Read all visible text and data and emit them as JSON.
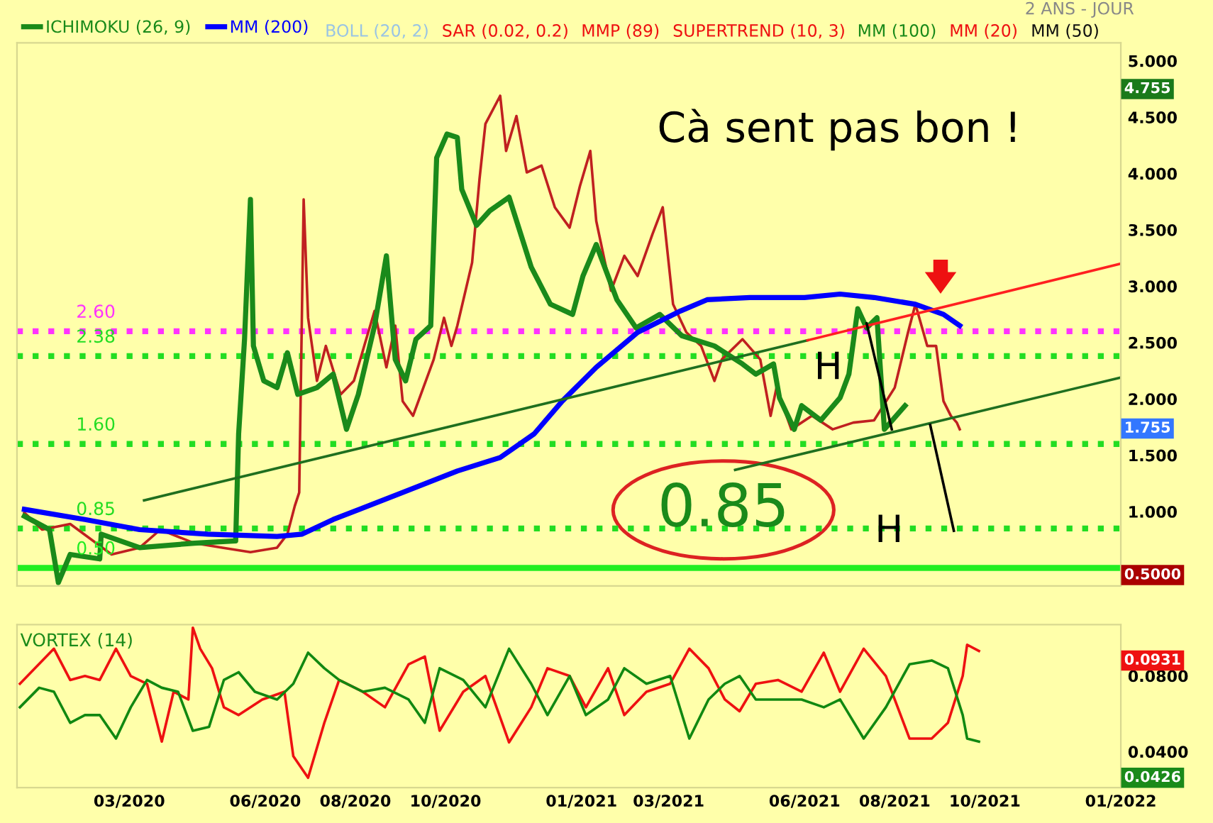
{
  "chart_data": [
    {
      "type": "line",
      "xlim": [
        "2019-12-16",
        "2022-01-01"
      ],
      "ylim": [
        0.34,
        5.16
      ],
      "yticks": [
        {
          "value": 1,
          "label": "1.000"
        },
        {
          "value": 1.5,
          "label": "1.500"
        },
        {
          "value": 2,
          "label": "2.000"
        },
        {
          "value": 2.5,
          "label": "2.500"
        },
        {
          "value": 3,
          "label": "3.000"
        },
        {
          "value": 3.5,
          "label": "3.500"
        },
        {
          "value": 4,
          "label": "4.000"
        },
        {
          "value": 4.5,
          "label": "4.500"
        },
        {
          "value": 5,
          "label": "5.000"
        }
      ],
      "tick_labels": "y",
      "legend": "top left",
      "series": [
        {
          "color": "#c02020",
          "x": [
            "2019-12-21",
            "2020-01-02",
            "2020-01-21",
            "2020-02-18",
            "2020-03-08",
            "2020-03-22",
            "2020-04-14",
            "2020-05-03",
            "2020-05-22",
            "2020-06-09",
            "2020-06-16",
            "2020-06-21",
            "2020-06-24",
            "2020-06-27",
            "2020-06-30",
            "2020-07-06",
            "2020-07-12",
            "2020-07-22",
            "2020-07-31",
            "2020-08-07",
            "2020-08-14",
            "2020-08-22",
            "2020-08-28",
            "2020-09-02",
            "2020-09-09",
            "2020-09-16",
            "2020-09-23",
            "2020-09-30",
            "2020-10-05",
            "2020-10-09",
            "2020-10-19",
            "2020-10-24",
            "2020-10-28",
            "2020-11-07",
            "2020-11-11",
            "2020-11-18",
            "2020-11-25",
            "2020-12-05",
            "2020-12-14",
            "2020-12-24",
            "2020-12-31",
            "2021-01-07",
            "2021-01-11",
            "2021-01-21",
            "2021-01-30",
            "2021-02-08",
            "2021-02-18",
            "2021-02-25",
            "2021-03-04",
            "2021-03-13",
            "2021-03-23",
            "2021-04-01",
            "2021-04-06",
            "2021-04-20",
            "2021-05-02",
            "2021-05-09",
            "2021-05-13",
            "2021-05-23",
            "2021-06-06",
            "2021-06-20",
            "2021-07-04",
            "2021-07-18",
            "2021-08-01",
            "2021-08-10",
            "2021-08-15",
            "2021-08-23",
            "2021-08-29",
            "2021-09-03",
            "2021-09-08",
            "2021-09-12",
            "2021-09-14"
          ],
          "values": [
            0.99,
            0.84,
            0.89,
            0.62,
            0.68,
            0.84,
            0.72,
            0.68,
            0.64,
            0.68,
            0.8,
            1.05,
            1.17,
            3.77,
            2.72,
            2.16,
            2.47,
            2.04,
            2.16,
            2.47,
            2.78,
            2.28,
            2.65,
            1.98,
            1.85,
            2.1,
            2.35,
            2.72,
            2.47,
            2.65,
            3.21,
            3.95,
            4.44,
            4.69,
            4.2,
            4.51,
            4.01,
            4.07,
            3.7,
            3.52,
            3.89,
            4.2,
            3.58,
            2.96,
            3.27,
            3.09,
            3.46,
            3.7,
            2.84,
            2.59,
            2.47,
            2.16,
            2.35,
            2.53,
            2.35,
            1.85,
            2.1,
            1.73,
            1.85,
            1.73,
            1.79,
            1.81,
            2.1,
            2.59,
            2.84,
            2.47,
            2.47,
            1.98,
            1.85,
            1.79,
            1.73
          ]
        },
        {
          "name": "ICHIMOKU (26, 9)",
          "color": "#1a8a1a",
          "x": [
            "2019-12-21",
            "2020-01-07",
            "2020-01-13",
            "2020-01-21",
            "2020-02-10",
            "2020-02-11",
            "2020-03-08",
            "2020-04-14",
            "2020-05-12",
            "2020-05-14",
            "2020-05-18",
            "2020-05-22",
            "2020-05-24",
            "2020-05-31",
            "2020-06-09",
            "2020-06-16",
            "2020-06-23",
            "2020-07-06",
            "2020-07-17",
            "2020-07-26",
            "2020-08-03",
            "2020-08-14",
            "2020-08-22",
            "2020-08-28",
            "2020-09-04",
            "2020-09-11",
            "2020-09-21",
            "2020-09-25",
            "2020-10-02",
            "2020-10-09",
            "2020-10-12",
            "2020-10-22",
            "2020-10-31",
            "2020-11-13",
            "2020-11-28",
            "2020-12-11",
            "2020-12-26",
            "2021-01-02",
            "2021-01-11",
            "2021-01-25",
            "2021-02-07",
            "2021-02-23",
            "2021-03-10",
            "2021-04-01",
            "2021-04-20",
            "2021-04-29",
            "2021-05-11",
            "2021-05-15",
            "2021-05-25",
            "2021-05-30",
            "2021-06-12",
            "2021-06-25",
            "2021-07-01",
            "2021-07-07",
            "2021-07-13",
            "2021-07-20",
            "2021-07-25",
            "2021-08-08"
          ],
          "values": [
            0.96,
            0.84,
            0.37,
            0.62,
            0.58,
            0.8,
            0.68,
            0.72,
            0.74,
            1.69,
            2.53,
            3.77,
            2.47,
            2.16,
            2.1,
            2.41,
            2.04,
            2.1,
            2.22,
            1.73,
            2.04,
            2.65,
            3.27,
            2.35,
            2.16,
            2.53,
            2.65,
            4.14,
            4.35,
            4.32,
            3.86,
            3.54,
            3.67,
            3.79,
            3.17,
            2.84,
            2.75,
            3.09,
            3.37,
            2.88,
            2.63,
            2.75,
            2.56,
            2.47,
            2.31,
            2.22,
            2.31,
            2.01,
            1.73,
            1.94,
            1.81,
            2.01,
            2.22,
            2.8,
            2.63,
            2.72,
            1.73,
            1.94
          ]
        },
        {
          "name": "MM (200)",
          "color": "#0000ff",
          "x": [
            "2019-12-21",
            "2020-01-31",
            "2020-03-08",
            "2020-04-23",
            "2020-06-09",
            "2020-06-26",
            "2020-07-17",
            "2020-09-02",
            "2020-10-09",
            "2020-11-07",
            "2020-11-30",
            "2020-12-19",
            "2021-01-11",
            "2021-02-08",
            "2021-03-09",
            "2021-03-27",
            "2021-04-25",
            "2021-06-01",
            "2021-06-25",
            "2021-07-18",
            "2021-08-15",
            "2021-09-03",
            "2021-09-14"
          ],
          "values": [
            1.02,
            0.93,
            0.84,
            0.8,
            0.78,
            0.8,
            0.93,
            1.17,
            1.36,
            1.48,
            1.69,
            1.98,
            2.28,
            2.59,
            2.78,
            2.88,
            2.9,
            2.9,
            2.93,
            2.9,
            2.84,
            2.75,
            2.65
          ]
        },
        {
          "color": "#1f6f1f",
          "x": [
            "2020-03-11",
            "2021-06-03"
          ],
          "values": [
            1.1,
            2.52
          ]
        },
        {
          "color": "#ff2020",
          "x": [
            "2021-06-03",
            "2022-01-01"
          ],
          "values": [
            2.52,
            3.2
          ]
        },
        {
          "color": "#1f6f1f",
          "x": [
            "2021-04-15",
            "2022-01-01"
          ],
          "values": [
            1.37,
            2.19
          ]
        },
        {
          "color": "#000000",
          "x": [
            "2021-07-13",
            "2021-07-30"
          ],
          "values": [
            2.67,
            1.73
          ]
        },
        {
          "color": "#000000",
          "x": [
            "2021-08-25",
            "2021-09-10"
          ],
          "values": [
            1.77,
            0.83
          ]
        }
      ],
      "ref_lines": [
        {
          "axis": "y",
          "value": 2.6,
          "label": "2.60",
          "color": "#ff33ff",
          "line_style": "dotted"
        },
        {
          "axis": "y",
          "value": 2.38,
          "label": "2.38",
          "color": "#22dd22",
          "line_style": "dotted"
        },
        {
          "axis": "y",
          "value": 1.6,
          "label": "1.60",
          "color": "#22dd22",
          "line_style": "dotted"
        },
        {
          "axis": "y",
          "value": 0.85,
          "label": "0.85",
          "color": "#22dd22",
          "line_style": "dotted"
        },
        {
          "axis": "y",
          "value": 0.5,
          "label": "0.50",
          "color": "#22ee22",
          "line_style": "solid"
        }
      ],
      "annotations": [
        "BOLL (20, 2)",
        "SAR (0.02, 0.2)",
        "MMP (89)",
        "SUPERTREND (10, 3)",
        "MM (100)",
        "MM (20)",
        "MM (50)",
        "2 ANS - JOUR",
        "Cà sent pas bon !",
        "H",
        "H",
        "0.85",
        "4.755",
        "1.755",
        "0.5000"
      ]
    },
    {
      "type": "line",
      "title": "VORTEX (14)",
      "xlim": [
        "2019-12-16",
        "2022-01-01"
      ],
      "ylim": [
        0.021,
        0.107
      ],
      "xticks": [
        {
          "value": "2020-03-01",
          "label": "03/2020"
        },
        {
          "value": "2020-06-01",
          "label": "06/2020"
        },
        {
          "value": "2020-08-01",
          "label": "08/2020"
        },
        {
          "value": "2020-10-01",
          "label": "10/2020"
        },
        {
          "value": "2021-01-01",
          "label": "01/2021"
        },
        {
          "value": "2021-03-01",
          "label": "03/2021"
        },
        {
          "value": "2021-06-01",
          "label": "06/2021"
        },
        {
          "value": "2021-08-01",
          "label": "08/2021"
        },
        {
          "value": "2021-10-01",
          "label": "10/2021"
        },
        {
          "value": "2022-01-01",
          "label": "01/2022"
        }
      ],
      "yticks": [
        {
          "value": 0.04,
          "label": "0.0400"
        },
        {
          "value": 0.08,
          "label": "0.0800"
        }
      ],
      "series": [
        {
          "color": "#ee1111",
          "x": [
            "2019-12-18",
            "2020-01-10",
            "2020-01-21",
            "2020-01-31",
            "2020-02-10",
            "2020-02-21",
            "2020-03-02",
            "2020-03-13",
            "2020-03-23",
            "2020-03-31",
            "2020-04-10",
            "2020-04-13",
            "2020-04-18",
            "2020-04-26",
            "2020-05-04",
            "2020-05-14",
            "2020-05-30",
            "2020-06-14",
            "2020-06-20",
            "2020-06-30",
            "2020-07-11",
            "2020-07-21",
            "2020-08-06",
            "2020-08-21",
            "2020-09-06",
            "2020-09-17",
            "2020-09-27",
            "2020-10-13",
            "2020-10-28",
            "2020-11-13",
            "2020-11-28",
            "2020-12-09",
            "2020-12-24",
            "2021-01-04",
            "2021-01-19",
            "2021-01-30",
            "2021-02-14",
            "2021-03-02",
            "2021-03-15",
            "2021-03-28",
            "2021-04-08",
            "2021-04-18",
            "2021-04-29",
            "2021-05-14",
            "2021-05-30",
            "2021-06-14",
            "2021-06-25",
            "2021-07-11",
            "2021-07-26",
            "2021-08-11",
            "2021-08-26",
            "2021-09-06",
            "2021-09-16",
            "2021-09-19",
            "2021-09-27"
          ],
          "values": [
            0.0758,
            0.0943,
            0.0778,
            0.0799,
            0.0778,
            0.0943,
            0.0799,
            0.0758,
            0.0453,
            0.0716,
            0.0675,
            0.1054,
            0.0943,
            0.084,
            0.0634,
            0.0593,
            0.0675,
            0.0716,
            0.0376,
            0.0262,
            0.0552,
            0.0778,
            0.0716,
            0.0634,
            0.0861,
            0.0902,
            0.051,
            0.0716,
            0.0799,
            0.0449,
            0.0634,
            0.084,
            0.0799,
            0.0634,
            0.084,
            0.0593,
            0.0716,
            0.0758,
            0.0943,
            0.084,
            0.0675,
            0.0613,
            0.0758,
            0.0778,
            0.0716,
            0.0922,
            0.0716,
            0.0943,
            0.0799,
            0.0469,
            0.0469,
            0.0552,
            0.0799,
            0.0964,
            0.0931
          ]
        },
        {
          "color": "#118811",
          "x": [
            "2019-12-18",
            "2019-12-31",
            "2020-01-10",
            "2020-01-21",
            "2020-01-31",
            "2020-02-10",
            "2020-02-21",
            "2020-03-02",
            "2020-03-13",
            "2020-03-23",
            "2020-04-03",
            "2020-04-13",
            "2020-04-24",
            "2020-05-04",
            "2020-05-14",
            "2020-05-25",
            "2020-06-09",
            "2020-06-20",
            "2020-06-30",
            "2020-07-11",
            "2020-07-21",
            "2020-08-06",
            "2020-08-21",
            "2020-09-06",
            "2020-09-17",
            "2020-09-27",
            "2020-10-13",
            "2020-10-28",
            "2020-11-13",
            "2020-11-28",
            "2020-12-09",
            "2020-12-24",
            "2021-01-04",
            "2021-01-19",
            "2021-01-30",
            "2021-02-14",
            "2021-03-02",
            "2021-03-15",
            "2021-03-28",
            "2021-04-08",
            "2021-04-18",
            "2021-04-29",
            "2021-05-14",
            "2021-05-30",
            "2021-06-14",
            "2021-06-25",
            "2021-07-11",
            "2021-07-26",
            "2021-08-11",
            "2021-08-26",
            "2021-09-06",
            "2021-09-16",
            "2021-09-19",
            "2021-09-27"
          ],
          "values": [
            0.0634,
            0.0737,
            0.0716,
            0.0552,
            0.0593,
            0.0593,
            0.0469,
            0.0634,
            0.0778,
            0.0737,
            0.0716,
            0.051,
            0.0531,
            0.0778,
            0.0819,
            0.0716,
            0.0675,
            0.0758,
            0.0922,
            0.084,
            0.0778,
            0.0716,
            0.0737,
            0.0675,
            0.0552,
            0.084,
            0.0778,
            0.0634,
            0.0943,
            0.0758,
            0.0593,
            0.0799,
            0.0593,
            0.0675,
            0.084,
            0.0758,
            0.0799,
            0.0469,
            0.0675,
            0.0758,
            0.0799,
            0.0675,
            0.0675,
            0.0675,
            0.0634,
            0.0675,
            0.0469,
            0.0634,
            0.0861,
            0.0881,
            0.084,
            0.0593,
            0.0469,
            0.0453
          ]
        }
      ],
      "annotations": [
        "0.0931",
        "0.0426"
      ]
    }
  ]
}
